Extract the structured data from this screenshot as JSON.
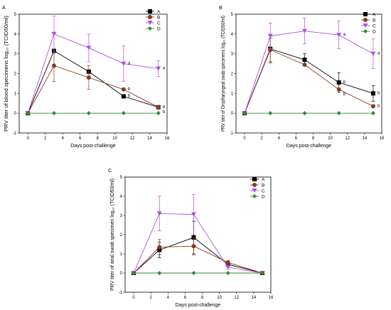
{
  "colors": {
    "A": "#000000",
    "B": "#8b3a1f",
    "C": "#b04fe0",
    "D": "#2e8b2e"
  },
  "chart_data": [
    {
      "type": "line",
      "panel_label": "A",
      "xlabel": "Days post-challenge",
      "ylabel": "PRV titer of blood specimens log₁₀ (TCID50/ml)",
      "xlim": [
        -1,
        16
      ],
      "ylim": [
        -1,
        5
      ],
      "xticks": [
        0,
        2,
        4,
        6,
        8,
        10,
        12,
        14,
        16
      ],
      "yticks": [
        -1,
        0,
        1,
        2,
        3,
        4,
        5
      ],
      "x": [
        0,
        3,
        7,
        11,
        15
      ],
      "series": [
        {
          "name": "A",
          "values": [
            0,
            3.15,
            2.1,
            0.85,
            0.3
          ],
          "err": [
            0,
            0,
            0,
            0,
            0
          ]
        },
        {
          "name": "B",
          "values": [
            0,
            2.4,
            1.8,
            1.2,
            0.3
          ],
          "err": [
            0,
            0.8,
            0.6,
            0,
            0
          ]
        },
        {
          "name": "C",
          "values": [
            0,
            4.0,
            3.3,
            2.5,
            2.25
          ],
          "err": [
            0,
            0.9,
            0.7,
            0.9,
            0.4
          ]
        },
        {
          "name": "D",
          "values": [
            0,
            0,
            0,
            0,
            0
          ],
          "err": [
            0,
            0,
            0,
            0,
            0
          ]
        }
      ],
      "sig_labels": [
        {
          "x": 11,
          "y": 2.5,
          "text": "a"
        },
        {
          "x": 11,
          "y": 1.2,
          "text": "b"
        },
        {
          "x": 11,
          "y": 0.85,
          "text": "b"
        },
        {
          "x": 15,
          "y": 2.25,
          "text": "a"
        },
        {
          "x": 15,
          "y": 0.3,
          "text": "b"
        },
        {
          "x": 15,
          "y": 0.3,
          "text": "b",
          "offset": "low"
        }
      ]
    },
    {
      "type": "line",
      "panel_label": "B",
      "xlabel": "Days post-challenge",
      "ylabel": "PRV titer of Oropharyngeal swab specimens log₁₀ (TCID50/ml)",
      "xlim": [
        -1,
        16
      ],
      "ylim": [
        -1,
        5
      ],
      "xticks": [
        0,
        2,
        4,
        6,
        8,
        10,
        12,
        14,
        16
      ],
      "yticks": [
        -1,
        0,
        1,
        2,
        3,
        4,
        5
      ],
      "x": [
        0,
        3,
        7,
        11,
        15
      ],
      "series": [
        {
          "name": "A",
          "values": [
            0,
            3.25,
            2.7,
            1.55,
            1.0
          ],
          "err": [
            0,
            0.7,
            0.3,
            0.5,
            0.4
          ]
        },
        {
          "name": "B",
          "values": [
            0,
            3.2,
            2.45,
            1.2,
            0.35
          ],
          "err": [
            0,
            0.6,
            0,
            0,
            0
          ]
        },
        {
          "name": "C",
          "values": [
            0,
            3.9,
            4.15,
            3.95,
            3.0
          ],
          "err": [
            0,
            0.65,
            0.65,
            0.7,
            0.75
          ]
        },
        {
          "name": "D",
          "values": [
            0,
            0,
            0,
            0,
            0
          ],
          "err": [
            0,
            0,
            0,
            0,
            0
          ]
        }
      ],
      "sig_labels": [
        {
          "x": 11,
          "y": 3.95,
          "text": "a"
        },
        {
          "x": 11,
          "y": 1.55,
          "text": "b"
        },
        {
          "x": 11,
          "y": 1.2,
          "text": "b",
          "offset": "low"
        },
        {
          "x": 15,
          "y": 3.0,
          "text": "a"
        },
        {
          "x": 15,
          "y": 1.0,
          "text": "b"
        },
        {
          "x": 15,
          "y": 0.35,
          "text": "b"
        }
      ]
    },
    {
      "type": "line",
      "panel_label": "C",
      "xlabel": "Days post-challenge",
      "ylabel": "PRV titer of anal swab specimen log₁₀ (TCID50/ml)",
      "xlim": [
        -1,
        16
      ],
      "ylim": [
        -1,
        5
      ],
      "xticks": [
        0,
        2,
        4,
        6,
        8,
        10,
        12,
        14,
        16
      ],
      "yticks": [
        -1,
        0,
        1,
        2,
        3,
        4,
        5
      ],
      "x": [
        0,
        3,
        7,
        11,
        15
      ],
      "series": [
        {
          "name": "A",
          "values": [
            0,
            1.2,
            1.85,
            0.45,
            0
          ],
          "err": [
            0,
            0.4,
            0.85,
            0.1,
            0
          ]
        },
        {
          "name": "B",
          "values": [
            0,
            1.35,
            1.4,
            0.55,
            0
          ],
          "err": [
            0,
            0.4,
            0.45,
            0.1,
            0
          ]
        },
        {
          "name": "C",
          "values": [
            0,
            3.1,
            3.05,
            0.3,
            0
          ],
          "err": [
            0,
            0.9,
            1.05,
            0.1,
            0
          ]
        },
        {
          "name": "D",
          "values": [
            0,
            0,
            0,
            0,
            0
          ],
          "err": [
            0,
            0,
            0,
            0,
            0
          ]
        }
      ],
      "sig_labels": []
    }
  ]
}
